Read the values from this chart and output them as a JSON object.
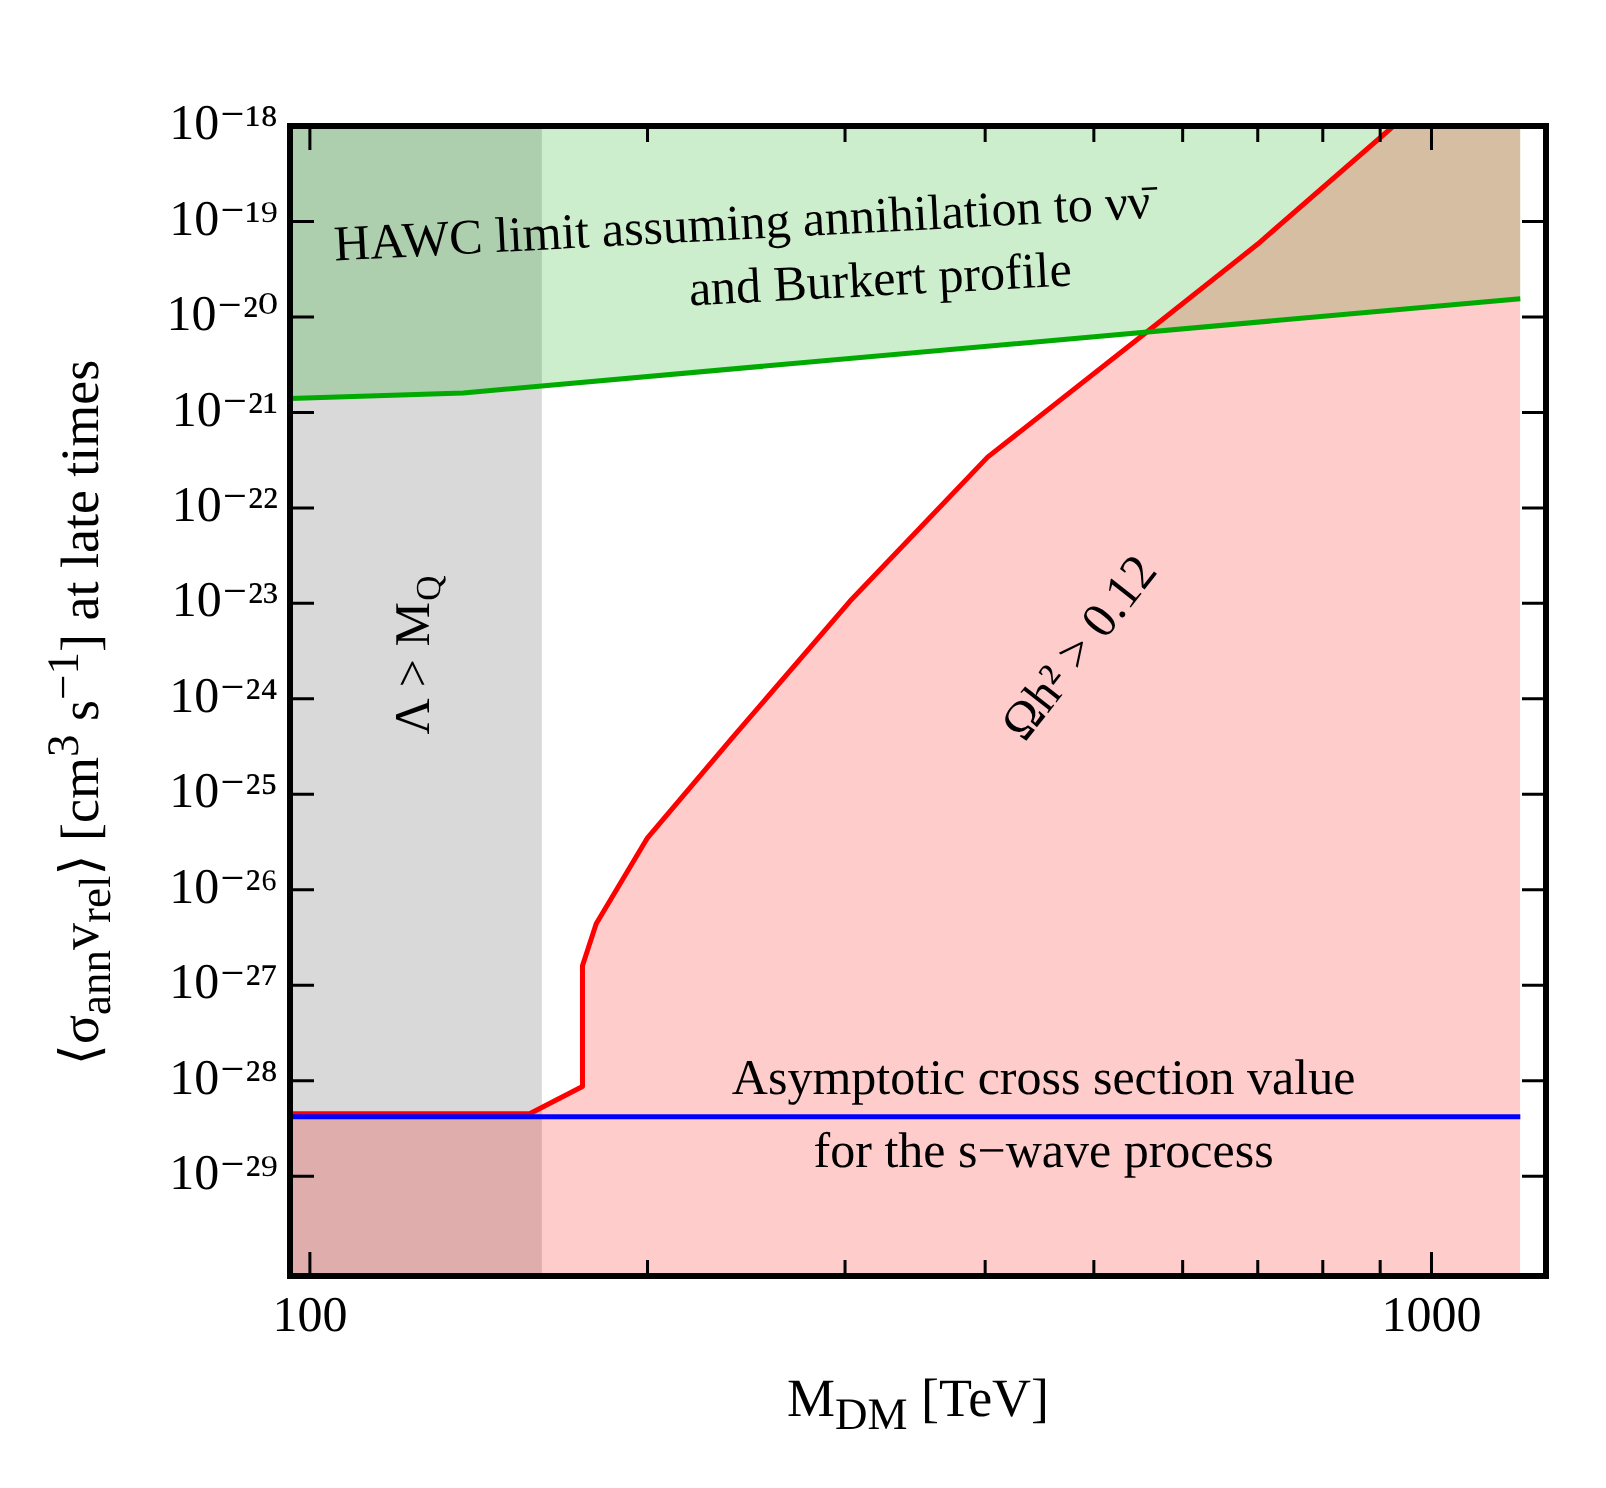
{
  "chart_data": {
    "type": "line",
    "xlabel": "M$_{DM}$ [TeV]",
    "ylabel": "⟨σ$_{ann}$v$_{rel}$⟩ [cm$^{3}$ s$^{−1}$] at late times",
    "log": "xy",
    "grid": false,
    "legend": false,
    "marker": "none",
    "line_style": "solid",
    "xlim": [
      96,
      1265
    ],
    "ylim": [
      9e-31,
      1e-18
    ],
    "xticks": [
      100,
      {
        "value": 200,
        "label": null
      },
      {
        "value": 300,
        "label": null
      },
      {
        "value": 400,
        "label": null
      },
      {
        "value": 500,
        "label": null
      },
      {
        "value": 600,
        "label": null
      },
      {
        "value": 700,
        "label": null
      },
      {
        "value": 800,
        "label": null
      },
      {
        "value": 900,
        "label": null
      },
      1000
    ],
    "yticks": [
      {
        "value": 1e-29,
        "label": "10⁻²⁹"
      },
      {
        "value": 1e-28,
        "label": "10⁻²⁸"
      },
      {
        "value": 1e-27,
        "label": "10⁻²⁷"
      },
      {
        "value": 1e-26,
        "label": "10⁻²⁶"
      },
      {
        "value": 1e-25,
        "label": "10⁻²⁵"
      },
      {
        "value": 1e-24,
        "label": "10⁻²⁴"
      },
      {
        "value": 1e-23,
        "label": "10⁻²³"
      },
      {
        "value": 1e-22,
        "label": "10⁻²²"
      },
      {
        "value": 1e-21,
        "label": "10⁻²¹"
      },
      {
        "value": 1e-20,
        "label": "10⁻²⁰"
      },
      {
        "value": 1e-19,
        "label": "10⁻¹⁹"
      },
      {
        "value": 1e-18,
        "label": "10⁻¹⁸"
      }
    ],
    "series": [
      {
        "type": "area",
        "color": "#ff0000",
        "x": [
          96,
          157,
          175,
          175,
          180,
          200,
          238,
          303,
          402,
          557,
          700,
          925,
          1200
        ],
        "values": [
          4.5e-29,
          4.5e-29,
          8.7e-29,
          1.6e-27,
          4.4e-27,
          3.5e-26,
          3.9e-25,
          1.05e-23,
          3.4e-22,
          6.9e-21,
          5.8e-20,
          1e-18,
          1e-18
        ]
      },
      {
        "type": "line",
        "color": "#00aa00",
        "x": [
          96,
          137,
          1200
        ],
        "values": [
          1.4e-21,
          1.6e-21,
          1.55e-20
        ],
        "lower": [
          1.4e-21,
          1.6e-21,
          1.55e-20
        ],
        "upper": [
          1e-18,
          1e-18,
          1e-18
        ]
      },
      {
        "type": "line",
        "color": "#0000ff",
        "x": [
          96,
          1200
        ],
        "values": [
          4.2e-29,
          4.2e-29
        ]
      }
    ],
    "bands": [
      {
        "axis": "x",
        "from": 96,
        "to": 161,
        "color": "#d9d9d9"
      }
    ],
    "annotations": [
      "HAWC limit assuming annihilation to νν̄",
      "and Burkert profile",
      "Λ > M$_{Q}$",
      "Ωh² > 0.12",
      "Asymptotic cross section value",
      "for the s−wave process"
    ]
  }
}
